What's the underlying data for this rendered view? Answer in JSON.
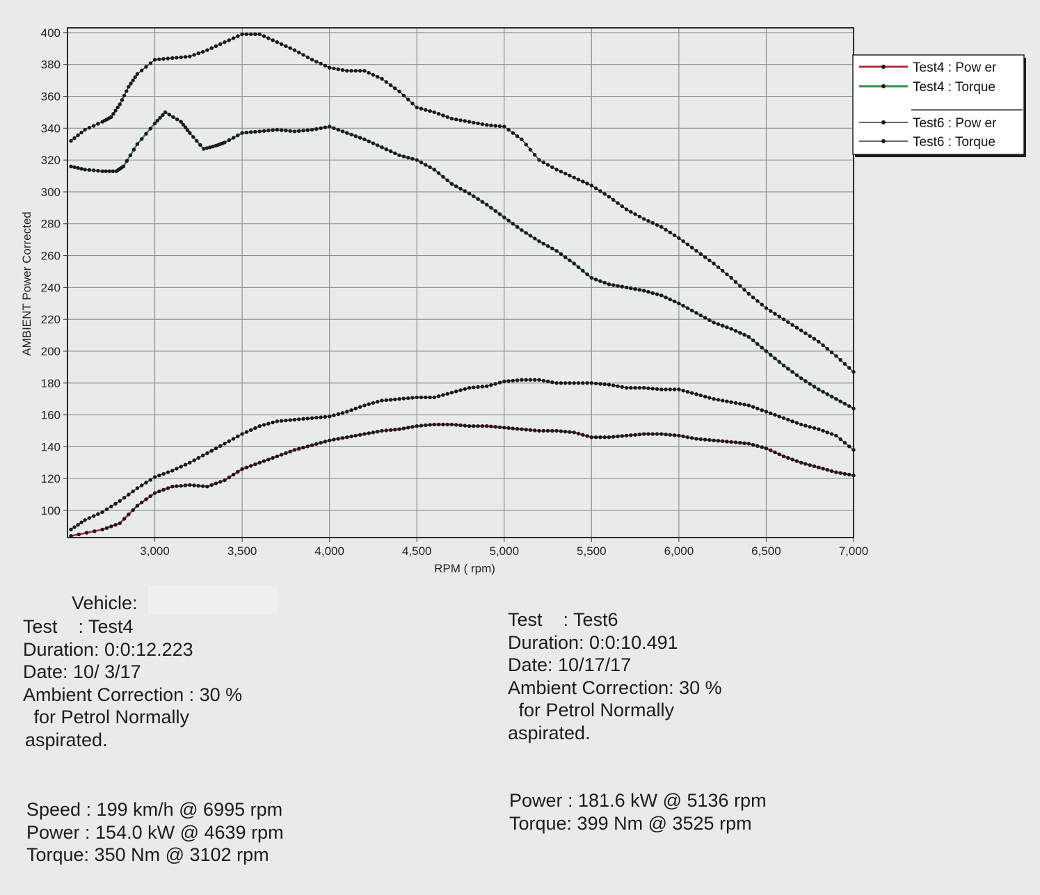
{
  "chart_data": {
    "type": "line",
    "xlabel": "RPM ( rpm)",
    "ylabel": "AMBIENT Power Corrected",
    "xlim": [
      2500,
      7000
    ],
    "ylim": [
      83,
      403
    ],
    "x_ticks": [
      "3,000",
      "3,500",
      "4,000",
      "4,500",
      "5,000",
      "5,500",
      "6,000",
      "6,500",
      "7,000"
    ],
    "y_ticks": [
      "100",
      "120",
      "140",
      "160",
      "180",
      "200",
      "220",
      "240",
      "260",
      "280",
      "300",
      "320",
      "340",
      "360",
      "380",
      "400"
    ],
    "grid": true,
    "legend_position": "top-right, outside plot",
    "series": [
      {
        "name": "Test4 : Pow er",
        "color": "#b03040",
        "x": [
          2520,
          2700,
          2800,
          2900,
          3000,
          3100,
          3200,
          3300,
          3400,
          3500,
          3600,
          3700,
          3800,
          3900,
          4000,
          4100,
          4200,
          4300,
          4400,
          4500,
          4600,
          4700,
          4800,
          4900,
          5000,
          5100,
          5200,
          5300,
          5400,
          5500,
          5600,
          5700,
          5800,
          5900,
          6000,
          6100,
          6200,
          6300,
          6400,
          6500,
          6600,
          6700,
          6800,
          6900,
          7000
        ],
        "values": [
          84,
          88,
          92,
          103,
          111,
          115,
          116,
          115,
          119,
          126,
          130,
          134,
          138,
          141,
          144,
          146,
          148,
          150,
          151,
          153,
          154,
          154,
          153,
          153,
          152,
          151,
          150,
          150,
          149,
          146,
          146,
          147,
          148,
          148,
          147,
          145,
          144,
          143,
          142,
          139,
          134,
          130,
          127,
          124,
          122
        ]
      },
      {
        "name": "Test4 : Torque",
        "color": "#3a8a4a",
        "x": [
          2520,
          2600,
          2700,
          2780,
          2820,
          2900,
          3000,
          3060,
          3150,
          3200,
          3280,
          3350,
          3400,
          3500,
          3600,
          3700,
          3800,
          3900,
          4000,
          4100,
          4200,
          4300,
          4400,
          4500,
          4600,
          4700,
          4800,
          4900,
          5000,
          5100,
          5200,
          5300,
          5400,
          5500,
          5600,
          5700,
          5800,
          5900,
          6000,
          6100,
          6200,
          6300,
          6400,
          6500,
          6600,
          6700,
          6800,
          6900,
          7000
        ],
        "values": [
          316,
          314,
          313,
          313,
          316,
          330,
          343,
          350,
          344,
          337,
          327,
          329,
          331,
          337,
          338,
          339,
          338,
          339,
          341,
          337,
          333,
          328,
          323,
          320,
          314,
          305,
          299,
          292,
          284,
          276,
          269,
          263,
          255,
          246,
          242,
          240,
          238,
          235,
          230,
          224,
          218,
          214,
          209,
          200,
          191,
          183,
          176,
          170,
          164
        ]
      },
      {
        "name": "Test6 : Pow er",
        "color": "#3a3a3a",
        "x": [
          2520,
          2600,
          2700,
          2800,
          2900,
          3000,
          3100,
          3200,
          3300,
          3400,
          3500,
          3600,
          3700,
          3800,
          3900,
          4000,
          4100,
          4200,
          4300,
          4400,
          4500,
          4600,
          4700,
          4800,
          4900,
          5000,
          5100,
          5200,
          5300,
          5400,
          5500,
          5600,
          5700,
          5800,
          5900,
          6000,
          6100,
          6200,
          6300,
          6400,
          6500,
          6600,
          6700,
          6800,
          6900,
          7000
        ],
        "values": [
          88,
          94,
          99,
          106,
          114,
          121,
          125,
          130,
          136,
          142,
          148,
          153,
          156,
          157,
          158,
          159,
          162,
          166,
          169,
          170,
          171,
          171,
          174,
          177,
          178,
          181,
          182,
          182,
          180,
          180,
          180,
          179,
          177,
          177,
          176,
          176,
          173,
          170,
          168,
          166,
          162,
          158,
          154,
          151,
          147,
          138
        ]
      },
      {
        "name": "Test6 : Torque",
        "color": "#3a3a3a",
        "x": [
          2520,
          2600,
          2700,
          2750,
          2800,
          2850,
          2900,
          3000,
          3100,
          3200,
          3300,
          3400,
          3500,
          3600,
          3700,
          3800,
          3900,
          4000,
          4100,
          4200,
          4300,
          4400,
          4500,
          4600,
          4700,
          4800,
          4900,
          5000,
          5100,
          5200,
          5300,
          5400,
          5500,
          5600,
          5700,
          5800,
          5900,
          6000,
          6100,
          6200,
          6300,
          6400,
          6500,
          6600,
          6700,
          6800,
          6900,
          7000
        ],
        "values": [
          332,
          339,
          344,
          347,
          355,
          366,
          374,
          383,
          384,
          385,
          389,
          394,
          399,
          399,
          394,
          389,
          383,
          378,
          376,
          376,
          371,
          363,
          353,
          350,
          346,
          344,
          342,
          341,
          333,
          320,
          314,
          309,
          304,
          297,
          289,
          283,
          278,
          271,
          263,
          255,
          246,
          236,
          227,
          220,
          213,
          206,
          197,
          187
        ]
      }
    ]
  },
  "info": {
    "vehicle_label": "Vehicle:",
    "test4": {
      "lines": [
        "Test    : Test4",
        "Duration: 0:0:12.223",
        "Date: 10/ 3/17",
        "Ambient Correction : 30 %",
        " for Petrol Normally",
        "aspirated."
      ],
      "summary": [
        "Speed : 199 km/h @ 6995 rpm",
        "Power : 154.0 kW @ 4639 rpm",
        "Torque: 350 Nm @ 3102 rpm"
      ]
    },
    "test6": {
      "lines": [
        "Test    : Test6",
        "Duration: 0:0:10.491",
        "Date: 10/17/17",
        "Ambient Correction: 30 %",
        " for Petrol Normally",
        "aspirated."
      ],
      "summary": [
        "Power : 181.6 kW @ 5136 rpm",
        "Torque: 399 Nm @ 3525 rpm"
      ]
    }
  }
}
